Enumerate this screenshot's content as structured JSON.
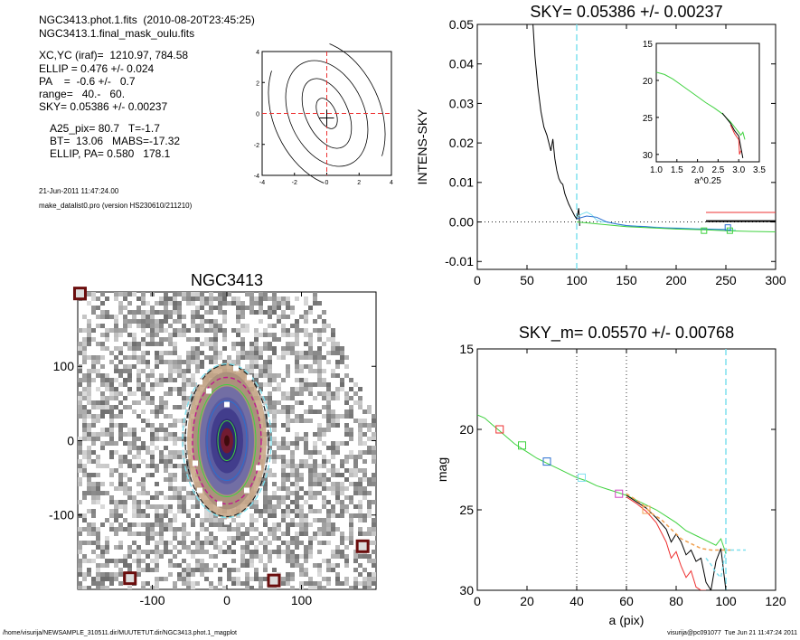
{
  "info": {
    "line1": "NGC3413.phot.1.fits  (2010-08-20T23:45:25)",
    "line2": "NGC3413.1.final_mask_oulu.fits",
    "line3": "XC,YC (iraf)=  1210.97, 784.58",
    "line4": "ELLIP = 0.476 +/- 0.024",
    "line5": "PA    =  -0.6 +/-   0.7",
    "line6": "range=   40.-   60.",
    "line7": "SKY= 0.05386 +/- 0.00237",
    "line8": "A25_pix= 80.7   T=-1.7",
    "line9": "BT=  13.06   MABS=-17.32",
    "line10": "ELLIP, PA= 0.580   178.1",
    "date": "21-Jun-2011 11:47:24.00",
    "program": "make_datalist0.pro (version HS230610/211210)"
  },
  "footer": {
    "left": "/home/visurija/NEWSAMPLE_310511.dir/MUUTETUT.dir/NGC3413.phot.1_magplot",
    "right": "visurija@pc091077  Tue Jun 21 11:47:24 2011"
  },
  "colors": {
    "cyan": "#7fe0ee",
    "blue": "#2a6fd0",
    "green": "#3fd23f",
    "red": "#ee3030",
    "magenta": "#d040c0",
    "orange": "#f0a050",
    "darkred": "#6b0d0d"
  },
  "chart_data": [
    {
      "id": "contour",
      "type": "contour",
      "xlim": [
        -4,
        4
      ],
      "ylim": [
        -4,
        4
      ],
      "xticks": [
        "-4",
        "-2",
        "0",
        "2",
        "4"
      ],
      "yticks": [
        "-4",
        "-2",
        "0",
        "2",
        "4"
      ],
      "crosshair": [
        0,
        0
      ]
    },
    {
      "id": "sky",
      "type": "line",
      "title": "SKY= 0.05386 +/- 0.00237",
      "ylabel": "INTENS-SKY",
      "xlim": [
        0,
        300
      ],
      "ylim": [
        -0.012,
        0.05
      ],
      "xticks": [
        "0",
        "50",
        "100",
        "150",
        "200",
        "250",
        "300"
      ],
      "yticks": [
        "-0.01",
        "0.00",
        "0.01",
        "0.02",
        "0.03",
        "0.04",
        "0.05"
      ],
      "vline": 100,
      "series": [
        {
          "color": "black",
          "x": [
            56,
            58,
            61,
            64,
            67,
            70,
            72,
            74,
            76,
            78,
            80,
            82,
            84,
            86,
            88,
            90,
            92,
            94,
            96,
            98,
            100,
            102,
            103
          ],
          "y": [
            0.05,
            0.042,
            0.034,
            0.028,
            0.024,
            0.022,
            0.02,
            0.018,
            0.021,
            0.016,
            0.013,
            0.011,
            0.01,
            0.0095,
            0.0072,
            0.0058,
            0.0045,
            0.0035,
            0.0025,
            0.0015,
            0.0008,
            0.0035,
            -0.001
          ]
        },
        {
          "color": "cyan",
          "x": [
            100,
            105,
            110,
            115,
            120,
            125,
            130,
            140,
            150,
            160,
            170,
            180,
            190,
            200,
            210,
            220,
            230,
            240,
            250,
            260
          ],
          "y": [
            0.0012,
            0.002,
            0.0025,
            0.0018,
            0.0005,
            0.0,
            0.0,
            -0.0005,
            -0.001,
            -0.001,
            -0.0012,
            -0.0013,
            -0.0015,
            -0.0015,
            -0.0016,
            -0.0017,
            -0.0018,
            -0.0018,
            -0.0019,
            -0.002
          ]
        },
        {
          "color": "blue",
          "x": [
            100,
            110,
            120,
            130,
            140,
            150,
            160,
            170,
            180,
            190,
            200,
            210,
            220,
            230,
            240,
            250
          ],
          "y": [
            0.0008,
            0.0015,
            0.0012,
            0.0,
            -0.0005,
            -0.0009,
            -0.0011,
            -0.0012,
            -0.0014,
            -0.0015,
            -0.0016,
            -0.0017,
            -0.0018,
            -0.0018,
            -0.0019,
            -0.0019
          ]
        },
        {
          "color": "green",
          "x": [
            100,
            150,
            200,
            230,
            250,
            275,
            300
          ],
          "y": [
            0.0,
            -0.0012,
            -0.0018,
            -0.002,
            -0.0022,
            -0.0024,
            -0.0025
          ]
        }
      ],
      "hlines": [
        {
          "color": "red",
          "y": 0.0024,
          "x": [
            230,
            300
          ]
        },
        {
          "color": "black",
          "y": 0.0002,
          "x": [
            230,
            300
          ]
        },
        {
          "color": "black",
          "y": 0.0,
          "x": [
            0,
            300
          ],
          "dotted": true
        }
      ],
      "markers": [
        {
          "x": 228,
          "y": -0.0022,
          "color": "green"
        },
        {
          "x": 252,
          "y": -0.0014,
          "color": "blue"
        },
        {
          "x": 254,
          "y": -0.0022,
          "color": "green"
        }
      ]
    },
    {
      "id": "inset",
      "type": "line",
      "xlabel": "a^0.25",
      "xlim": [
        1.0,
        3.5
      ],
      "ylim": [
        15,
        31
      ],
      "xticks": [
        "1.0",
        "1.5",
        "2.0",
        "2.5",
        "3.0",
        "3.5"
      ],
      "yticks": [
        "15",
        "20",
        "25",
        "30"
      ],
      "series": [
        {
          "color": "green",
          "x": [
            1.0,
            1.2,
            1.4,
            1.6,
            1.8,
            2.0,
            2.2,
            2.4,
            2.6,
            2.8,
            2.9,
            3.0,
            3.05,
            3.1,
            3.15
          ],
          "y": [
            18.9,
            19.2,
            19.8,
            20.6,
            21.4,
            22.2,
            23.0,
            23.7,
            24.5,
            25.6,
            26.3,
            27.0,
            27.4,
            27.0,
            28.0
          ]
        },
        {
          "color": "black",
          "x": [
            2.6,
            2.8,
            2.9,
            3.0,
            3.05,
            3.1
          ],
          "y": [
            24.4,
            25.8,
            26.8,
            27.5,
            29.0,
            30.5
          ]
        },
        {
          "color": "red",
          "x": [
            2.8,
            2.9,
            3.0,
            3.02,
            3.05
          ],
          "y": [
            26.0,
            27.2,
            28.0,
            30.0,
            29.5
          ]
        }
      ]
    },
    {
      "id": "image",
      "type": "image",
      "title": "NGC3413",
      "xlim": [
        -200,
        200
      ],
      "ylim": [
        -200,
        200
      ],
      "xticks": [
        "-100",
        "0",
        "100"
      ],
      "yticks": [
        "-100",
        "0",
        "100"
      ]
    },
    {
      "id": "mag",
      "type": "line",
      "title": "SKY_m=  0.05570 +/- 0.00768",
      "xlabel": "a (pix)",
      "ylabel": "mag",
      "xlim": [
        0,
        120
      ],
      "ylim": [
        15,
        30
      ],
      "xticks": [
        "0",
        "20",
        "40",
        "60",
        "80",
        "100",
        "120"
      ],
      "yticks": [
        "15",
        "20",
        "25",
        "30"
      ],
      "vlines_dotted": [
        40,
        60
      ],
      "vline_cyan": 100,
      "series": [
        {
          "color": "green",
          "x": [
            0,
            3,
            6,
            9,
            12,
            15,
            18,
            21,
            24,
            28,
            32,
            36,
            40,
            44,
            48,
            52,
            56,
            60,
            64,
            68,
            72,
            76,
            80,
            84,
            88,
            92,
            96,
            98,
            100
          ],
          "y": [
            19.1,
            19.3,
            19.7,
            20.1,
            20.5,
            20.9,
            21.2,
            21.5,
            21.8,
            22.1,
            22.4,
            22.7,
            23.0,
            23.2,
            23.5,
            23.7,
            23.9,
            24.1,
            24.4,
            24.7,
            25.0,
            25.4,
            25.8,
            26.3,
            26.6,
            26.9,
            27.2,
            26.8,
            27.7
          ]
        },
        {
          "color": "black",
          "x": [
            60,
            64,
            68,
            72,
            76,
            78,
            80,
            82,
            84,
            86,
            88,
            90,
            92,
            94,
            96,
            98,
            100
          ],
          "y": [
            24.1,
            24.5,
            24.9,
            25.5,
            26.2,
            27.0,
            26.5,
            27.0,
            27.8,
            27.5,
            28.2,
            28.0,
            29.5,
            30.0,
            28.2,
            27.4,
            30.0
          ]
        },
        {
          "color": "red",
          "x": [
            60,
            64,
            68,
            72,
            76,
            78,
            80,
            82,
            84,
            86,
            88,
            90,
            92
          ],
          "y": [
            24.2,
            24.6,
            25.1,
            25.8,
            27.0,
            28.0,
            27.6,
            28.5,
            29.2,
            28.8,
            29.8,
            30.0,
            30.0
          ]
        },
        {
          "color": "orange",
          "x": [
            60,
            66,
            70,
            74,
            78,
            82,
            86,
            90,
            94,
            98,
            102
          ],
          "y": [
            24.0,
            24.6,
            25.2,
            25.6,
            26.2,
            26.8,
            27.1,
            27.4,
            27.5,
            27.5,
            27.5
          ],
          "dashed": true
        },
        {
          "color": "cyan",
          "x": [
            92,
            94,
            96,
            98,
            100,
            104,
            108
          ],
          "y": [
            28.0,
            28.4,
            28.9,
            29.2,
            27.5,
            27.5,
            27.5
          ],
          "dashed": true
        }
      ],
      "markers": [
        {
          "x": 9,
          "y": 20.0,
          "color": "red"
        },
        {
          "x": 18,
          "y": 21.0,
          "color": "green"
        },
        {
          "x": 28,
          "y": 22.0,
          "color": "blue"
        },
        {
          "x": 42,
          "y": 23.0,
          "color": "cyan"
        },
        {
          "x": 57,
          "y": 24.0,
          "color": "magenta"
        },
        {
          "x": 68,
          "y": 25.0,
          "color": "orange"
        }
      ]
    }
  ]
}
